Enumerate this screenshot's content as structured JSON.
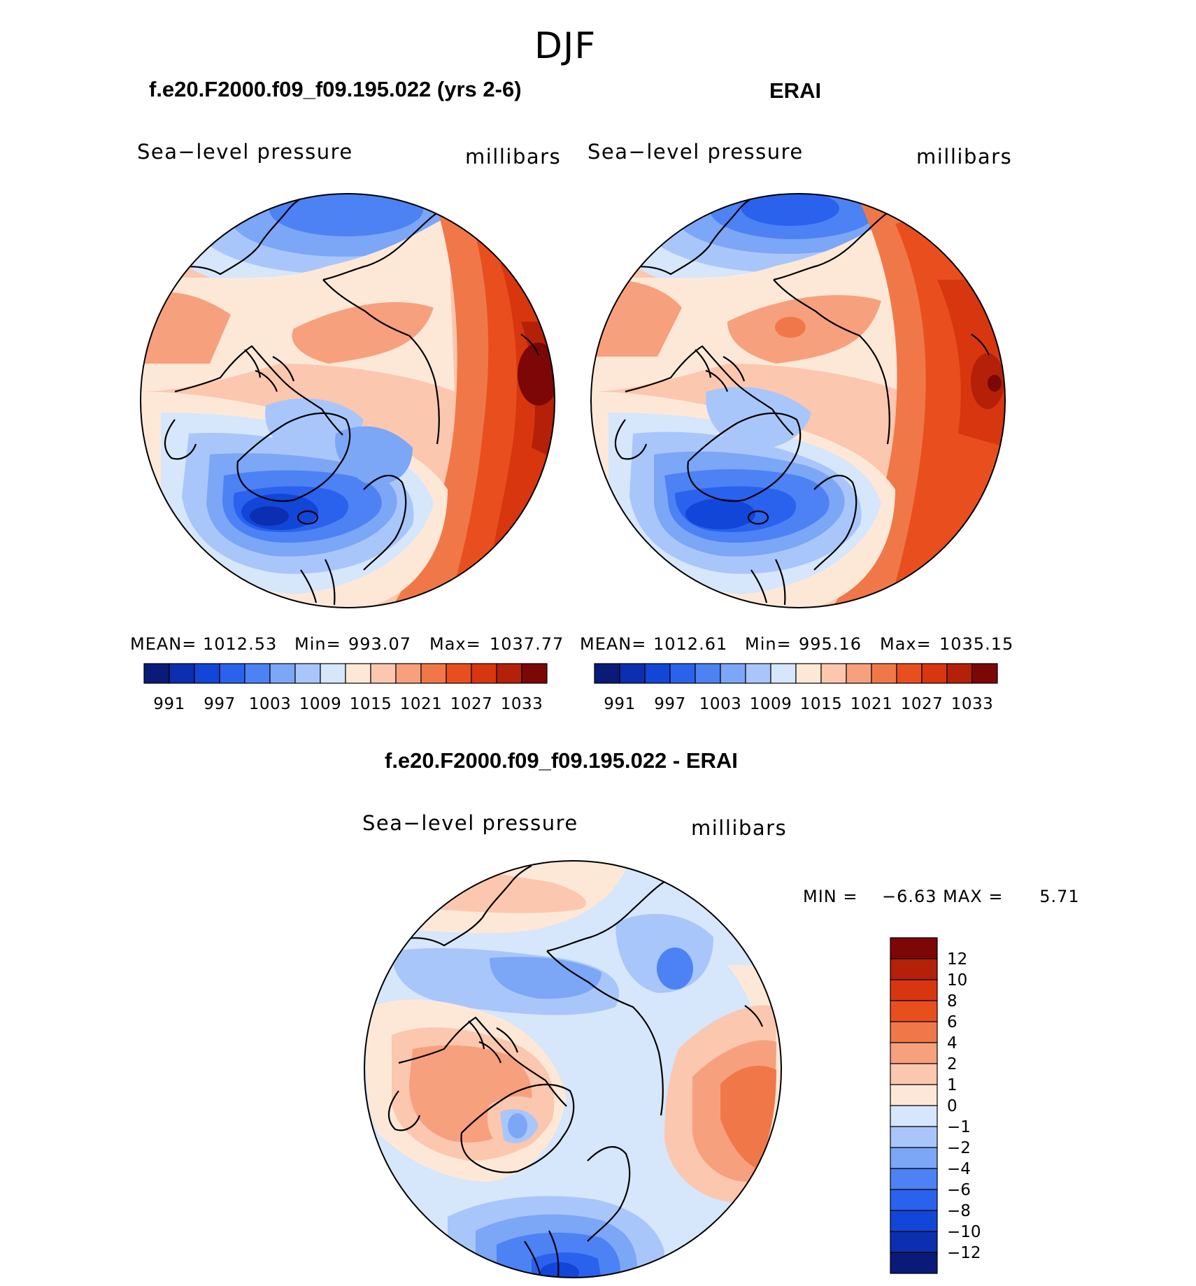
{
  "title": "DJF",
  "panels": {
    "model": {
      "heading": "f.e20.F2000.f09_f09.195.022 (yrs 2-6)",
      "left_label": "Sea−level pressure",
      "right_label": "millibars",
      "stats": {
        "mean_label": "MEAN=",
        "mean": "1012.53",
        "min_label": "Min=",
        "min": "993.07",
        "max_label": "Max=",
        "max": "1037.77"
      }
    },
    "obs": {
      "heading": "ERAI",
      "left_label": "Sea−level pressure",
      "right_label": "millibars",
      "stats": {
        "mean_label": "MEAN=",
        "mean": "1012.61",
        "min_label": "Min=",
        "min": "995.16",
        "max_label": "Max=",
        "max": "1035.15"
      }
    },
    "diff": {
      "heading": "f.e20.F2000.f09_f09.195.022 - ERAI",
      "left_label": "Sea−level pressure",
      "right_label": "millibars",
      "stats": {
        "text": "MIN =    −6.63 MAX =      5.71"
      }
    }
  },
  "chart_data": [
    {
      "type": "heatmap",
      "title": "f.e20.F2000.f09_f09.195.022 (yrs 2-6)",
      "variable": "Sea-level pressure",
      "units": "millibars",
      "projection": "north polar stereographic",
      "levels": [
        991,
        994,
        997,
        1000,
        1003,
        1006,
        1009,
        1012,
        1015,
        1018,
        1021,
        1024,
        1027,
        1030,
        1033
      ],
      "tick_labels": [
        "991",
        "997",
        "1003",
        "1009",
        "1015",
        "1021",
        "1027",
        "1033"
      ],
      "colors": [
        "#0a1a78",
        "#0b2fb0",
        "#1246d8",
        "#2a62ee",
        "#4c82f4",
        "#7ca6f6",
        "#a9c6fa",
        "#d6e6fb",
        "#fde8d8",
        "#fbc7ae",
        "#f7a07e",
        "#f07848",
        "#e94f1e",
        "#d8360f",
        "#b52009",
        "#7d0707"
      ],
      "mean": 1012.53,
      "min": 993.07,
      "max": 1037.77
    },
    {
      "type": "heatmap",
      "title": "ERAI",
      "variable": "Sea-level pressure",
      "units": "millibars",
      "projection": "north polar stereographic",
      "levels": [
        991,
        994,
        997,
        1000,
        1003,
        1006,
        1009,
        1012,
        1015,
        1018,
        1021,
        1024,
        1027,
        1030,
        1033
      ],
      "tick_labels": [
        "991",
        "997",
        "1003",
        "1009",
        "1015",
        "1021",
        "1027",
        "1033"
      ],
      "colors": [
        "#0a1a78",
        "#0b2fb0",
        "#1246d8",
        "#2a62ee",
        "#4c82f4",
        "#7ca6f6",
        "#a9c6fa",
        "#d6e6fb",
        "#fde8d8",
        "#fbc7ae",
        "#f7a07e",
        "#f07848",
        "#e94f1e",
        "#d8360f",
        "#b52009",
        "#7d0707"
      ],
      "mean": 1012.61,
      "min": 995.16,
      "max": 1035.15
    },
    {
      "type": "heatmap",
      "title": "f.e20.F2000.f09_f09.195.022 - ERAI",
      "variable": "Sea-level pressure difference",
      "units": "millibars",
      "projection": "north polar stereographic",
      "levels": [
        -12,
        -10,
        -8,
        -6,
        -4,
        -2,
        -1,
        0,
        1,
        2,
        4,
        6,
        8,
        10,
        12
      ],
      "tick_labels": [
        "12",
        "10",
        "8",
        "6",
        "4",
        "2",
        "1",
        "0",
        "−1",
        "−2",
        "−4",
        "−6",
        "−8",
        "−10",
        "−12"
      ],
      "colors": [
        "#0a1a78",
        "#0b2fb0",
        "#1246d8",
        "#2a62ee",
        "#4c82f4",
        "#7ca6f6",
        "#a9c6fa",
        "#d6e6fb",
        "#fde8d8",
        "#fbc7ae",
        "#f7a07e",
        "#f07848",
        "#e94f1e",
        "#d8360f",
        "#b52009",
        "#7d0707"
      ],
      "min": -6.63,
      "max": 5.71
    }
  ]
}
